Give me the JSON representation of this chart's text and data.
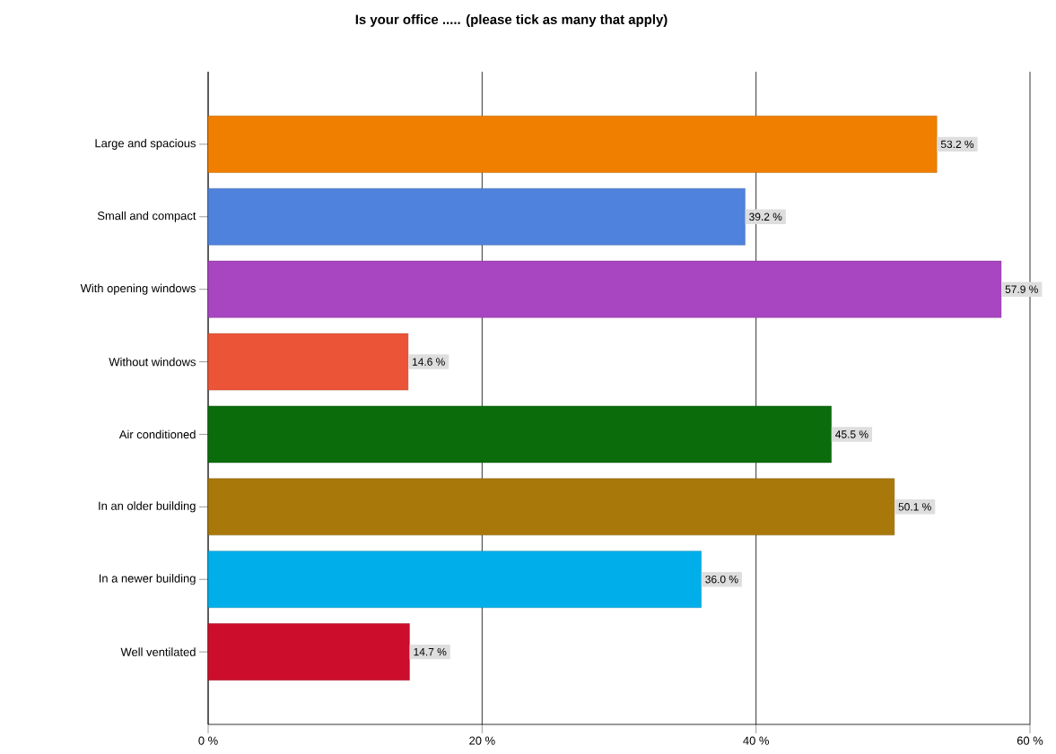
{
  "chart_data": {
    "type": "bar",
    "orientation": "horizontal",
    "title": "Is your office ..... (please tick as many that apply)",
    "categories": [
      "Large and spacious",
      "Small and compact",
      "With opening windows",
      "Without windows",
      "Air conditioned",
      "In an older building",
      "In a newer building",
      "Well ventilated"
    ],
    "values": [
      53.2,
      39.2,
      57.9,
      14.6,
      45.5,
      50.1,
      36.0,
      14.7
    ],
    "value_labels": [
      "53.2 %",
      "39.2 %",
      "57.9 %",
      "14.6 %",
      "45.5 %",
      "50.1 %",
      "36.0 %",
      "14.7 %"
    ],
    "colors": [
      "#f07f00",
      "#4f82dc",
      "#a845c0",
      "#ec5438",
      "#0b6c0b",
      "#a8780a",
      "#00aeea",
      "#cc0e2c"
    ],
    "xlim": [
      0,
      60
    ],
    "xticks": [
      {
        "value": 0,
        "label": "0 %"
      },
      {
        "value": 20,
        "label": "20 %"
      },
      {
        "value": 40,
        "label": "40 %"
      },
      {
        "value": 60,
        "label": "60 %"
      }
    ],
    "grid": "x"
  }
}
